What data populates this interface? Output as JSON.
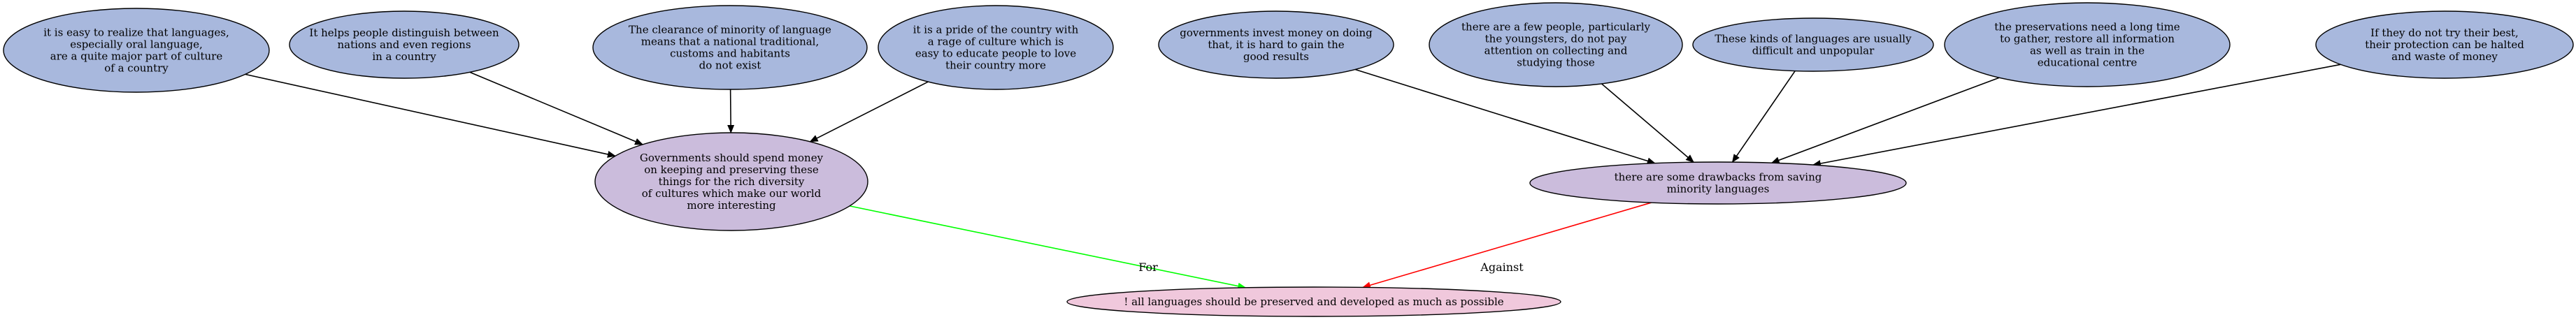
{
  "diagram": {
    "colors": {
      "premise_fill": "#a8b8dd",
      "claim_fill": "#cbbcdc",
      "conclusion_fill": "#f0c8dc",
      "stroke": "#000000",
      "for_edge": "#00ff00",
      "against_edge": "#ff0000",
      "support_edge": "#000000"
    },
    "conclusion": {
      "id": "c",
      "lines": [
        "! all languages should be preserved and developed as much as possible"
      ]
    },
    "claims": [
      {
        "id": "claim-for",
        "lines": [
          "Governments should spend money",
          "on keeping and preserving these",
          "things for the rich diversity",
          "of cultures which make our world",
          "more interesting"
        ]
      },
      {
        "id": "claim-against",
        "lines": [
          "there are some drawbacks from saving",
          "minority languages"
        ]
      }
    ],
    "premises": [
      {
        "id": "p1",
        "target": "claim-for",
        "lines": [
          "it is easy to realize that languages,",
          "especially oral language,",
          "are a quite major part of culture",
          "of a country"
        ]
      },
      {
        "id": "p2",
        "target": "claim-for",
        "lines": [
          "It helps people distinguish between",
          "nations and even regions",
          "in a country"
        ]
      },
      {
        "id": "p3",
        "target": "claim-for",
        "lines": [
          "The clearance of minority of language",
          "means that a national traditional,",
          "customs and habitants",
          "do not exist"
        ]
      },
      {
        "id": "p4",
        "target": "claim-for",
        "lines": [
          "it is a pride of the country with",
          "a rage of culture which is",
          "easy to educate people to love",
          "their country more"
        ]
      },
      {
        "id": "p5",
        "target": "claim-against",
        "lines": [
          "governments invest money on doing",
          "that, it is hard to gain the",
          "good results"
        ]
      },
      {
        "id": "p6",
        "target": "claim-against",
        "lines": [
          "there are a few people, particularly",
          "the youngsters, do not pay",
          "attention on collecting and",
          "studying those"
        ]
      },
      {
        "id": "p7",
        "target": "claim-against",
        "lines": [
          "These kinds of languages are usually",
          "difficult and unpopular"
        ]
      },
      {
        "id": "p8",
        "target": "claim-against",
        "lines": [
          "the preservations need a long time",
          "to gather, restore all information",
          "as well as train in the",
          "educational centre"
        ]
      },
      {
        "id": "p9",
        "target": "claim-against",
        "lines": [
          "If they do not try their best,",
          "their protection can be halted",
          "and waste of money"
        ]
      }
    ],
    "edge_labels": {
      "for": "For",
      "against": "Against"
    }
  }
}
